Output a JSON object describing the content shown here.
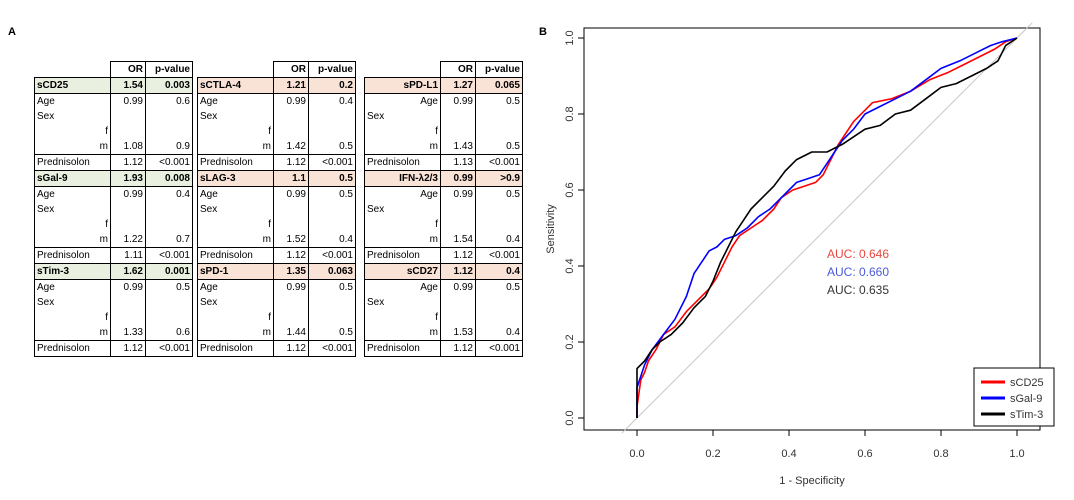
{
  "panel_a_label": "A",
  "panel_b_label": "B",
  "tables": [
    {
      "header": [
        "",
        "OR",
        "p-value"
      ],
      "marker_align": "left",
      "groups": [
        {
          "marker": "sCD25",
          "or": "1.54",
          "p": "0.003",
          "color": "green",
          "rows": [
            [
              "Age",
              "0.99",
              "0.6"
            ],
            [
              "Sex",
              "",
              ""
            ],
            [
              "f",
              "",
              ""
            ],
            [
              "m",
              "1.08",
              "0.9"
            ],
            [
              "Prednisolon",
              "1.12",
              "<0.001"
            ]
          ]
        },
        {
          "marker": "sGal-9",
          "or": "1.93",
          "p": "0.008",
          "color": "green",
          "rows": [
            [
              "Age",
              "0.99",
              "0.4"
            ],
            [
              "Sex",
              "",
              ""
            ],
            [
              "f",
              "",
              ""
            ],
            [
              "m",
              "1.22",
              "0.7"
            ],
            [
              "Prednisolon",
              "1.11",
              "<0.001"
            ]
          ]
        },
        {
          "marker": "sTim-3",
          "or": "1.62",
          "p": "0.001",
          "color": "green",
          "rows": [
            [
              "Age",
              "0.99",
              "0.5"
            ],
            [
              "Sex",
              "",
              ""
            ],
            [
              "f",
              "",
              ""
            ],
            [
              "m",
              "1.33",
              "0.6"
            ],
            [
              "Prednisolon",
              "1.12",
              "<0.001"
            ]
          ]
        }
      ]
    },
    {
      "header": [
        "",
        "OR",
        "p-value"
      ],
      "marker_align": "left",
      "groups": [
        {
          "marker": "sCTLA-4",
          "or": "1.21",
          "p": "0.2",
          "color": "pink",
          "rows": [
            [
              "Age",
              "0.99",
              "0.4"
            ],
            [
              "Sex",
              "",
              ""
            ],
            [
              "f",
              "",
              ""
            ],
            [
              "m",
              "1.42",
              "0.5"
            ],
            [
              "Prednisolon",
              "1.12",
              "<0.001"
            ]
          ]
        },
        {
          "marker": "sLAG-3",
          "or": "1.1",
          "p": "0.5",
          "color": "pink",
          "rows": [
            [
              "Age",
              "0.99",
              "0.5"
            ],
            [
              "Sex",
              "",
              ""
            ],
            [
              "f",
              "",
              ""
            ],
            [
              "m",
              "1.52",
              "0.4"
            ],
            [
              "Prednisolon",
              "1.12",
              "<0.001"
            ]
          ]
        },
        {
          "marker": "sPD-1",
          "or": "1.35",
          "p": "0.063",
          "color": "pink",
          "rows": [
            [
              "Age",
              "0.99",
              "0.5"
            ],
            [
              "Sex",
              "",
              ""
            ],
            [
              "f",
              "",
              ""
            ],
            [
              "m",
              "1.44",
              "0.5"
            ],
            [
              "Prednisolon",
              "1.12",
              "<0.001"
            ]
          ]
        }
      ]
    },
    {
      "header": [
        "",
        "OR",
        "p-value"
      ],
      "marker_align": "right",
      "groups": [
        {
          "marker": "sPD-L1",
          "or": "1.27",
          "p": "0.065",
          "color": "pink",
          "rows": [
            [
              "Age",
              "0.99",
              "0.5"
            ],
            [
              "Sex",
              "",
              ""
            ],
            [
              "f",
              "",
              ""
            ],
            [
              "m",
              "1.43",
              "0.5"
            ],
            [
              "Prednisolon",
              "1.13",
              "<0.001"
            ]
          ]
        },
        {
          "marker": "IFN-λ2/3",
          "or": "0.99",
          "p": ">0.9",
          "color": "pink",
          "rows": [
            [
              "Age",
              "0.99",
              "0.5"
            ],
            [
              "Sex",
              "",
              ""
            ],
            [
              "f",
              "",
              ""
            ],
            [
              "m",
              "1.54",
              "0.4"
            ],
            [
              "Prednisolon",
              "1.12",
              "<0.001"
            ]
          ]
        },
        {
          "marker": "sCD27",
          "or": "1.12",
          "p": "0.4",
          "color": "pink",
          "rows": [
            [
              "Age",
              "0.99",
              "0.5"
            ],
            [
              "Sex",
              "",
              ""
            ],
            [
              "f",
              "",
              ""
            ],
            [
              "m",
              "1.53",
              "0.4"
            ],
            [
              "Prednisolon",
              "1.12",
              "<0.001"
            ]
          ]
        }
      ]
    }
  ],
  "chart_data": {
    "type": "line",
    "title": "",
    "xlabel": "1 - Specificity",
    "ylabel": "Sensitivity",
    "xlim": [
      0,
      1
    ],
    "ylim": [
      0,
      1
    ],
    "xticks": [
      "0.0",
      "0.2",
      "0.4",
      "0.6",
      "0.8",
      "1.0"
    ],
    "yticks": [
      "0.0",
      "0.2",
      "0.4",
      "0.6",
      "0.8",
      "1.0"
    ],
    "grid": false,
    "legend_position": "bottom-right",
    "annotations": [
      {
        "text": "AUC: 0.646",
        "color": "#e8473f"
      },
      {
        "text": "AUC: 0.660",
        "color": "#4a5bd8"
      },
      {
        "text": "AUC: 0.635",
        "color": "#333333"
      }
    ],
    "series": [
      {
        "name": "sCD25",
        "color": "#ff0000",
        "points": [
          [
            0,
            0
          ],
          [
            0,
            0.03
          ],
          [
            0.01,
            0.1
          ],
          [
            0.02,
            0.12
          ],
          [
            0.03,
            0.15
          ],
          [
            0.05,
            0.18
          ],
          [
            0.07,
            0.22
          ],
          [
            0.1,
            0.24
          ],
          [
            0.13,
            0.28
          ],
          [
            0.16,
            0.31
          ],
          [
            0.19,
            0.34
          ],
          [
            0.21,
            0.37
          ],
          [
            0.23,
            0.41
          ],
          [
            0.25,
            0.45
          ],
          [
            0.27,
            0.48
          ],
          [
            0.3,
            0.5
          ],
          [
            0.33,
            0.52
          ],
          [
            0.36,
            0.55
          ],
          [
            0.38,
            0.58
          ],
          [
            0.41,
            0.6
          ],
          [
            0.44,
            0.61
          ],
          [
            0.47,
            0.62
          ],
          [
            0.49,
            0.64
          ],
          [
            0.51,
            0.68
          ],
          [
            0.53,
            0.72
          ],
          [
            0.55,
            0.75
          ],
          [
            0.57,
            0.78
          ],
          [
            0.6,
            0.81
          ],
          [
            0.62,
            0.83
          ],
          [
            0.67,
            0.84
          ],
          [
            0.72,
            0.86
          ],
          [
            0.77,
            0.89
          ],
          [
            0.82,
            0.91
          ],
          [
            0.86,
            0.93
          ],
          [
            0.9,
            0.95
          ],
          [
            0.94,
            0.97
          ],
          [
            0.97,
            0.99
          ],
          [
            1,
            1
          ]
        ]
      },
      {
        "name": "sGal-9",
        "color": "#0000ff",
        "points": [
          [
            0,
            0
          ],
          [
            0,
            0.08
          ],
          [
            0.01,
            0.11
          ],
          [
            0.02,
            0.14
          ],
          [
            0.04,
            0.18
          ],
          [
            0.07,
            0.22
          ],
          [
            0.1,
            0.26
          ],
          [
            0.13,
            0.32
          ],
          [
            0.15,
            0.38
          ],
          [
            0.17,
            0.41
          ],
          [
            0.19,
            0.44
          ],
          [
            0.21,
            0.45
          ],
          [
            0.23,
            0.47
          ],
          [
            0.26,
            0.48
          ],
          [
            0.29,
            0.5
          ],
          [
            0.32,
            0.53
          ],
          [
            0.35,
            0.55
          ],
          [
            0.37,
            0.57
          ],
          [
            0.4,
            0.6
          ],
          [
            0.42,
            0.62
          ],
          [
            0.45,
            0.63
          ],
          [
            0.48,
            0.64
          ],
          [
            0.5,
            0.67
          ],
          [
            0.52,
            0.7
          ],
          [
            0.54,
            0.73
          ],
          [
            0.57,
            0.76
          ],
          [
            0.6,
            0.8
          ],
          [
            0.64,
            0.82
          ],
          [
            0.68,
            0.84
          ],
          [
            0.72,
            0.86
          ],
          [
            0.76,
            0.89
          ],
          [
            0.8,
            0.92
          ],
          [
            0.85,
            0.94
          ],
          [
            0.89,
            0.96
          ],
          [
            0.93,
            0.98
          ],
          [
            0.96,
            0.99
          ],
          [
            1,
            1
          ]
        ]
      },
      {
        "name": "sTim-3",
        "color": "#000000",
        "points": [
          [
            0,
            0
          ],
          [
            0,
            0.13
          ],
          [
            0.02,
            0.15
          ],
          [
            0.04,
            0.18
          ],
          [
            0.06,
            0.2
          ],
          [
            0.09,
            0.22
          ],
          [
            0.12,
            0.25
          ],
          [
            0.15,
            0.29
          ],
          [
            0.18,
            0.32
          ],
          [
            0.2,
            0.36
          ],
          [
            0.22,
            0.41
          ],
          [
            0.24,
            0.45
          ],
          [
            0.26,
            0.49
          ],
          [
            0.28,
            0.52
          ],
          [
            0.3,
            0.55
          ],
          [
            0.33,
            0.58
          ],
          [
            0.36,
            0.61
          ],
          [
            0.39,
            0.65
          ],
          [
            0.42,
            0.68
          ],
          [
            0.46,
            0.7
          ],
          [
            0.5,
            0.7
          ],
          [
            0.54,
            0.72
          ],
          [
            0.57,
            0.74
          ],
          [
            0.6,
            0.76
          ],
          [
            0.64,
            0.77
          ],
          [
            0.68,
            0.8
          ],
          [
            0.72,
            0.81
          ],
          [
            0.76,
            0.84
          ],
          [
            0.8,
            0.87
          ],
          [
            0.84,
            0.88
          ],
          [
            0.88,
            0.9
          ],
          [
            0.92,
            0.92
          ],
          [
            0.95,
            0.94
          ],
          [
            0.97,
            0.98
          ],
          [
            1,
            1
          ]
        ]
      }
    ]
  }
}
